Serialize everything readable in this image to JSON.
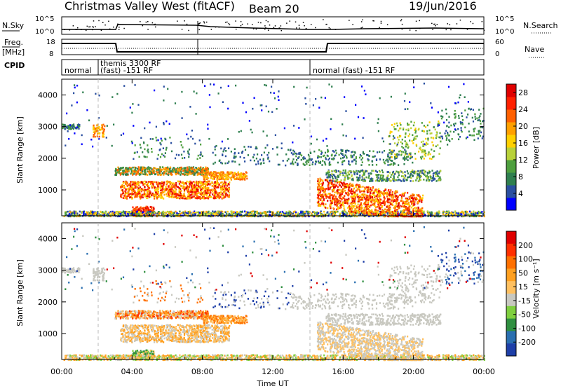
{
  "header": {
    "title": "Christmas Valley West (fitACF)",
    "beam": "Beam 20",
    "date": "19/Jun/2016"
  },
  "strip_panels": {
    "nsky": {
      "label": "N.Sky",
      "ticks": [
        "10^5",
        "10^0"
      ]
    },
    "nsearch": {
      "label": "N.Search",
      "ticks": [
        "10^5",
        "10^0"
      ]
    },
    "freq": {
      "label_line1": "Freq.",
      "label_line2": "[MHz]",
      "ticks": [
        "18",
        "8"
      ]
    },
    "nave": {
      "label": "Nave",
      "ticks": [
        "60",
        "0"
      ]
    },
    "cpid": {
      "label": "CPID",
      "segments": [
        {
          "line1": "normal",
          "line2": ""
        },
        {
          "line1": "themis 3300 RF",
          "line2": "(fast) -151 RF"
        },
        {
          "line1": "normal (fast) -151 RF",
          "line2": ""
        }
      ]
    }
  },
  "time_axis": {
    "label": "Time UT",
    "ticks": [
      "00:00",
      "04:00",
      "08:00",
      "12:00",
      "16:00",
      "20:00",
      "00:00"
    ]
  },
  "colors": {
    "power_scale": [
      "#0000ff",
      "#2a4fa0",
      "#2f7f4f",
      "#4e9f3e",
      "#b8d13a",
      "#ffd000",
      "#ffa000",
      "#ff6000",
      "#ff2000",
      "#e00000"
    ],
    "velocity_scale": [
      "#1e3fa8",
      "#2a6fb0",
      "#2f8f40",
      "#7fcf3f",
      "#c8c8c0",
      "#ffc060",
      "#ffa020",
      "#ff7000",
      "#ff3000",
      "#e00000"
    ]
  },
  "chart_data": [
    {
      "type": "heatmap",
      "panel": "power",
      "ylabel": "Slant Range [km]",
      "yticks": [
        "1000",
        "2000",
        "3000",
        "4000"
      ],
      "ylim": [
        180,
        4500
      ],
      "xlim_hours": [
        0,
        24
      ],
      "colorbar_label": "Power [dB]",
      "colorbar_ticks": [
        "4",
        "8",
        "12",
        "16",
        "20",
        "24",
        "28"
      ],
      "colorbar_range": [
        0,
        30
      ]
    },
    {
      "type": "heatmap",
      "panel": "velocity",
      "ylabel": "Slant Range [km]",
      "yticks": [
        "1000",
        "2000",
        "3000",
        "4000"
      ],
      "ylim": [
        180,
        4500
      ],
      "xlim_hours": [
        0,
        24
      ],
      "colorbar_label": "Velocity [m s⁻¹]",
      "colorbar_ticks": [
        "200",
        "100",
        "50",
        "15",
        "-15",
        "-50",
        "-100",
        "-200"
      ],
      "colorbar_range": [
        -250,
        250
      ]
    }
  ]
}
